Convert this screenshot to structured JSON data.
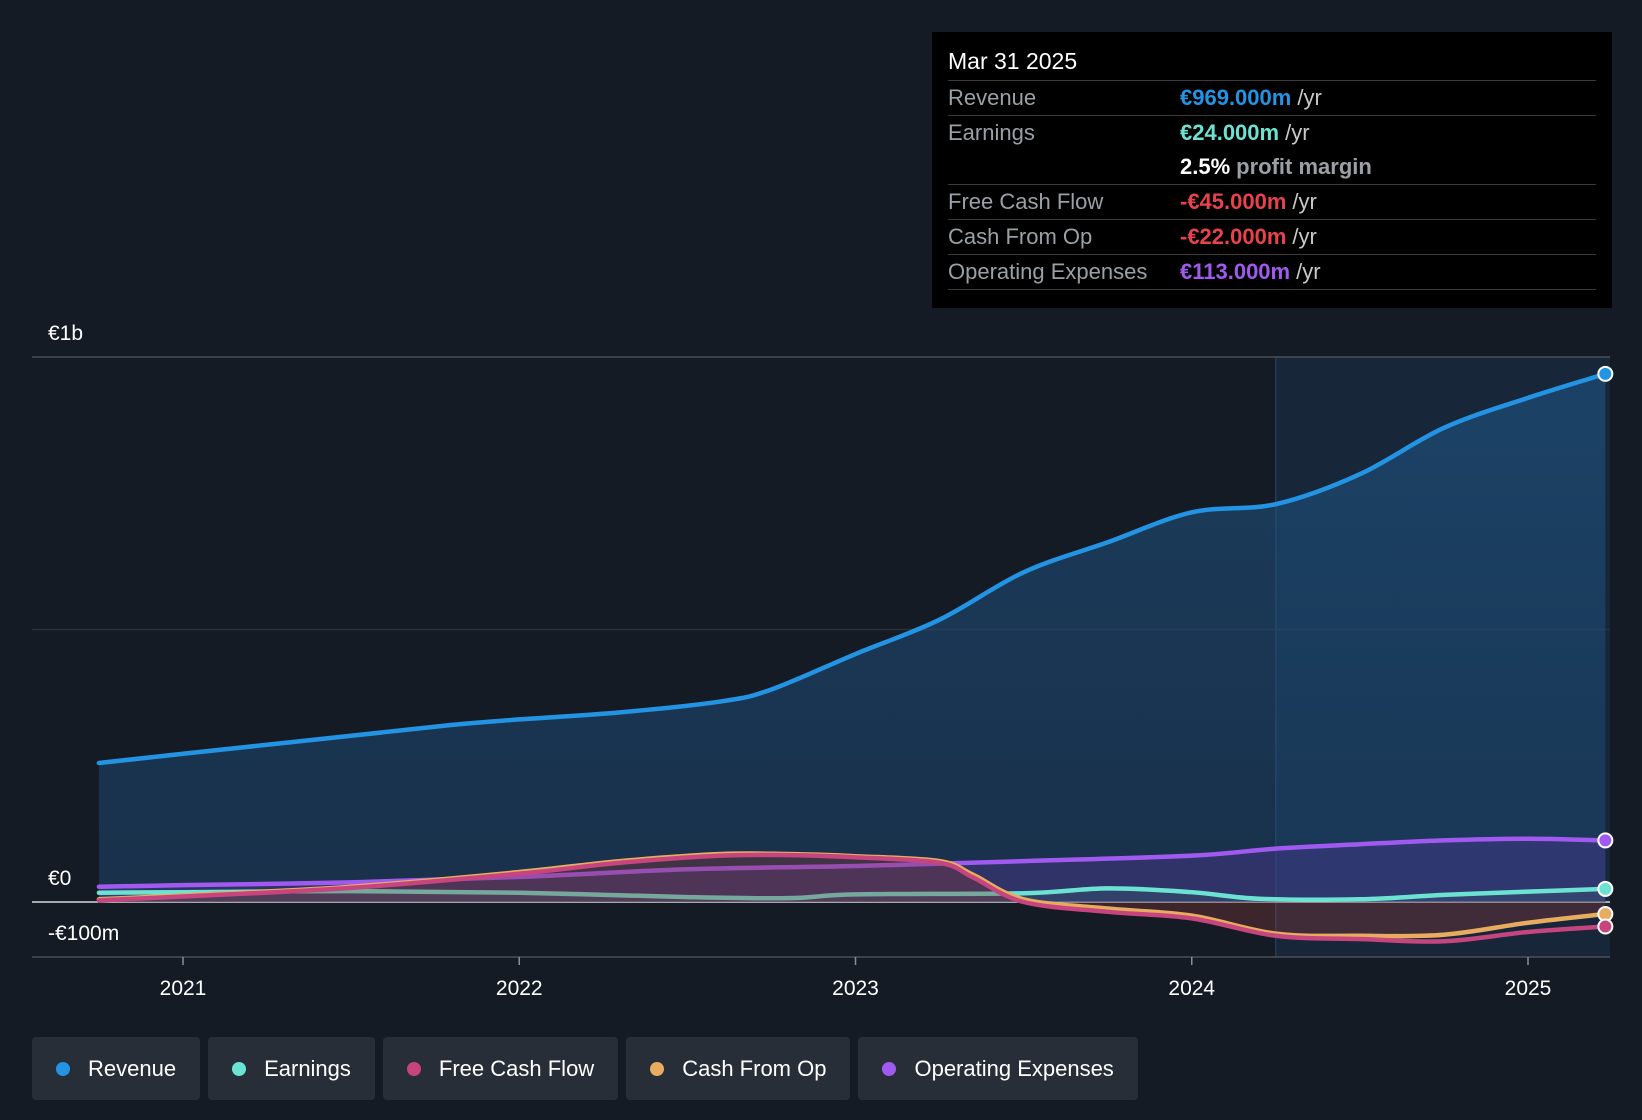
{
  "tooltip": {
    "date": "Mar 31 2025",
    "rows": [
      {
        "label": "Revenue",
        "value": "€969.000m",
        "unit": "/yr",
        "color": "#2394e3"
      },
      {
        "label": "Earnings",
        "value": "€24.000m",
        "unit": "/yr",
        "color": "#6ce3d2"
      },
      {
        "margin_value": "2.5%",
        "margin_text": "profit margin"
      },
      {
        "label": "Free Cash Flow",
        "value": "-€45.000m",
        "unit": "/yr",
        "color": "#e8434b"
      },
      {
        "label": "Cash From Op",
        "value": "-€22.000m",
        "unit": "/yr",
        "color": "#e8434b"
      },
      {
        "label": "Operating Expenses",
        "value": "€113.000m",
        "unit": "/yr",
        "color": "#a05af0"
      }
    ]
  },
  "legend": [
    {
      "label": "Revenue",
      "color": "#2394e3"
    },
    {
      "label": "Earnings",
      "color": "#6ce3d2"
    },
    {
      "label": "Free Cash Flow",
      "color": "#c6457f"
    },
    {
      "label": "Cash From Op",
      "color": "#e8ac60"
    },
    {
      "label": "Operating Expenses",
      "color": "#a05af0"
    }
  ],
  "chart_data": {
    "type": "area",
    "y_tick_labels": [
      "€1b",
      "€0",
      "-€100m"
    ],
    "ylim": [
      -100,
      1000
    ],
    "x_tick_labels": [
      "2021",
      "2022",
      "2023",
      "2024",
      "2025"
    ],
    "x_ticks": [
      2021.0,
      2022.0,
      2023.0,
      2024.0,
      2025.0
    ],
    "xlim": [
      2020.55,
      2025.23
    ],
    "highlight_start": 2024.25,
    "grid": true,
    "series": [
      {
        "name": "Revenue",
        "color": "#2394e3",
        "fill": true,
        "x": [
          2020.75,
          2021.0,
          2021.5,
          2021.8,
          2022.0,
          2022.3,
          2022.6,
          2022.75,
          2023.0,
          2023.25,
          2023.5,
          2023.75,
          2024.0,
          2024.25,
          2024.5,
          2024.75,
          2025.0,
          2025.23
        ],
        "y": [
          255,
          272,
          305,
          325,
          335,
          348,
          368,
          390,
          455,
          518,
          605,
          660,
          715,
          730,
          785,
          870,
          925,
          969
        ]
      },
      {
        "name": "Operating Expenses",
        "color": "#a05af0",
        "fill": true,
        "x": [
          2020.75,
          2021.0,
          2021.5,
          2022.0,
          2022.5,
          2023.0,
          2023.5,
          2024.0,
          2024.25,
          2024.5,
          2024.75,
          2025.0,
          2025.23
        ],
        "y": [
          28,
          31,
          36,
          46,
          60,
          66,
          75,
          85,
          98,
          106,
          113,
          116,
          113
        ]
      },
      {
        "name": "Earnings",
        "color": "#6ce3d2",
        "fill": true,
        "x": [
          2020.75,
          2021.0,
          2021.5,
          2022.0,
          2022.5,
          2022.8,
          2023.0,
          2023.5,
          2023.75,
          2024.0,
          2024.2,
          2024.5,
          2024.75,
          2025.0,
          2025.23
        ],
        "y": [
          17,
          18,
          20,
          17,
          9,
          7,
          14,
          16,
          25,
          18,
          6,
          5,
          13,
          19,
          24
        ]
      },
      {
        "name": "Cash From Op",
        "color": "#e8ac60",
        "fill": true,
        "x": [
          2020.75,
          2021.0,
          2021.5,
          2022.0,
          2022.3,
          2022.6,
          2022.8,
          2023.0,
          2023.25,
          2023.35,
          2023.5,
          2023.75,
          2024.0,
          2024.25,
          2024.5,
          2024.75,
          2025.0,
          2025.23
        ],
        "y": [
          5,
          12,
          28,
          55,
          75,
          88,
          88,
          84,
          75,
          50,
          5,
          -12,
          -25,
          -58,
          -62,
          -60,
          -38,
          -22
        ]
      },
      {
        "name": "Free Cash Flow",
        "color": "#c6457f",
        "fill": false,
        "x": [
          2020.75,
          2021.0,
          2021.5,
          2022.0,
          2022.3,
          2022.6,
          2022.8,
          2023.0,
          2023.25,
          2023.35,
          2023.5,
          2023.75,
          2024.0,
          2024.25,
          2024.5,
          2024.75,
          2025.0,
          2025.23
        ],
        "y": [
          3,
          10,
          26,
          52,
          72,
          85,
          86,
          82,
          72,
          45,
          0,
          -18,
          -30,
          -62,
          -68,
          -72,
          -55,
          -45
        ]
      }
    ]
  }
}
